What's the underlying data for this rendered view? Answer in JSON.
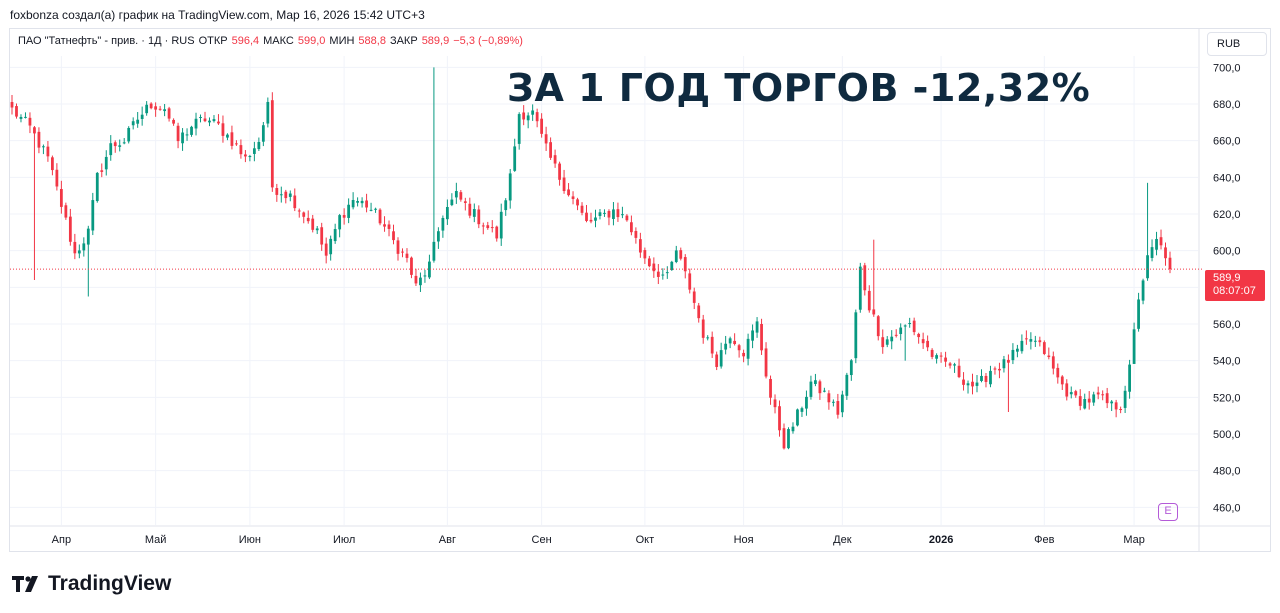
{
  "attribution": "foxbonza создал(а) график на TradingView.com, Мар 16, 2026 15:42 UTC+3",
  "legend": {
    "symbol": "ПАО \"Татнефть\" - прив. · 1Д · RUS",
    "open_label": "ОТКР",
    "open_value": "596,4",
    "high_label": "МАКС",
    "high_value": "599,0",
    "low_label": "МИН",
    "low_value": "588,8",
    "close_label": "ЗАКР",
    "close_value": "589,9",
    "change": "−5,3 (−0,89%)"
  },
  "headline": "ЗА 1 ГОД ТОРГОВ -12,32%",
  "currency_button": "RUB",
  "price_badge": {
    "price": "589,9",
    "countdown": "08:07:07"
  },
  "events_icon": "E",
  "logo_text": "TradingView",
  "colors": {
    "up": "#089981",
    "down": "#f23645",
    "grid": "#f0f3fa",
    "headline": "#0f2a3f"
  },
  "chart_data": {
    "type": "candlestick",
    "ylim": [
      452,
      704
    ],
    "y_ticks": [
      "700,0",
      "680,0",
      "660,0",
      "640,0",
      "620,0",
      "600,0",
      "580,0",
      "560,0",
      "540,0",
      "520,0",
      "500,0",
      "480,0",
      "460,0"
    ],
    "y_tick_values": [
      700,
      680,
      660,
      640,
      620,
      600,
      580,
      560,
      540,
      520,
      500,
      480,
      460
    ],
    "x_tick_labels": [
      "Апр",
      "Май",
      "Июн",
      "Июл",
      "Авг",
      "Сен",
      "Окт",
      "Ноя",
      "Дек",
      "2026",
      "Фев",
      "Мар"
    ],
    "x_tick_positions": [
      11,
      32,
      53,
      74,
      97,
      118,
      141,
      163,
      185,
      207,
      230,
      250
    ],
    "last_price": 589.9,
    "anchors": [
      [
        0,
        677
      ],
      [
        4,
        667
      ],
      [
        8,
        650
      ],
      [
        11,
        625
      ],
      [
        14,
        598
      ],
      [
        17,
        610
      ],
      [
        19,
        640
      ],
      [
        22,
        657
      ],
      [
        25,
        660
      ],
      [
        28,
        672
      ],
      [
        31,
        680
      ],
      [
        34,
        678
      ],
      [
        37,
        660
      ],
      [
        40,
        668
      ],
      [
        43,
        672
      ],
      [
        46,
        668
      ],
      [
        49,
        660
      ],
      [
        52,
        650
      ],
      [
        55,
        660
      ],
      [
        57,
        678
      ],
      [
        58,
        635
      ],
      [
        62,
        630
      ],
      [
        65,
        620
      ],
      [
        68,
        610
      ],
      [
        70,
        597
      ],
      [
        73,
        618
      ],
      [
        76,
        628
      ],
      [
        79,
        625
      ],
      [
        82,
        617
      ],
      [
        85,
        605
      ],
      [
        88,
        595
      ],
      [
        90,
        580
      ],
      [
        93,
        592
      ],
      [
        96,
        620
      ],
      [
        99,
        630
      ],
      [
        102,
        622
      ],
      [
        105,
        615
      ],
      [
        108,
        608
      ],
      [
        111,
        640
      ],
      [
        113,
        675
      ],
      [
        116,
        675
      ],
      [
        119,
        655
      ],
      [
        122,
        640
      ],
      [
        125,
        628
      ],
      [
        128,
        615
      ],
      [
        131,
        618
      ],
      [
        134,
        622
      ],
      [
        137,
        617
      ],
      [
        140,
        600
      ],
      [
        143,
        590
      ],
      [
        146,
        585
      ],
      [
        148,
        600
      ],
      [
        151,
        580
      ],
      [
        154,
        555
      ],
      [
        157,
        540
      ],
      [
        160,
        555
      ],
      [
        163,
        545
      ],
      [
        166,
        560
      ],
      [
        169,
        520
      ],
      [
        172,
        495
      ],
      [
        175,
        510
      ],
      [
        178,
        528
      ],
      [
        181,
        522
      ],
      [
        184,
        512
      ],
      [
        187,
        540
      ],
      [
        189,
        590
      ],
      [
        191,
        570
      ],
      [
        194,
        550
      ],
      [
        197,
        555
      ],
      [
        200,
        560
      ],
      [
        203,
        550
      ],
      [
        206,
        540
      ],
      [
        209,
        538
      ],
      [
        212,
        530
      ],
      [
        215,
        525
      ],
      [
        218,
        535
      ],
      [
        221,
        538
      ],
      [
        224,
        545
      ],
      [
        227,
        552
      ],
      [
        230,
        545
      ],
      [
        233,
        530
      ],
      [
        236,
        520
      ],
      [
        239,
        518
      ],
      [
        242,
        520
      ],
      [
        245,
        515
      ],
      [
        247,
        516
      ],
      [
        249,
        535
      ],
      [
        251,
        575
      ],
      [
        253,
        595
      ],
      [
        255,
        605
      ],
      [
        257,
        598
      ],
      [
        258,
        590
      ]
    ],
    "spikes": {
      "5": [
        null,
        584
      ],
      "17": [
        null,
        575
      ],
      "94": [
        700,
        null
      ],
      "192": [
        606,
        null
      ],
      "199": [
        null,
        540
      ],
      "222": [
        null,
        512
      ],
      "250": [
        null,
        545
      ],
      "253": [
        637,
        null
      ]
    }
  }
}
